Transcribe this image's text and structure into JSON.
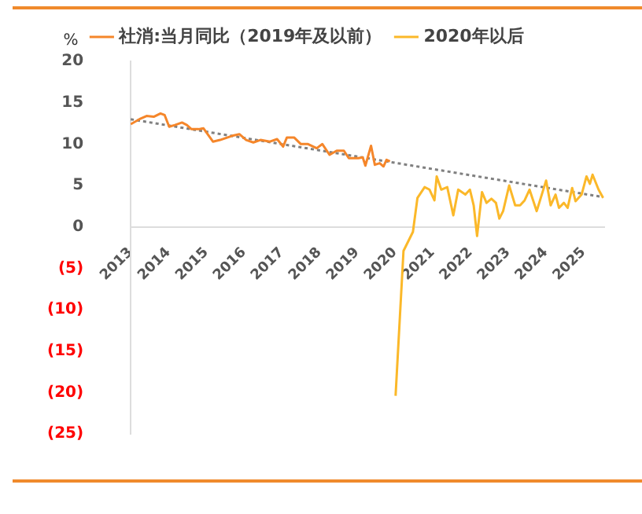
{
  "chart_data": {
    "type": "line",
    "ylabel": "%",
    "legend": "top",
    "grid": false,
    "marker": "none",
    "line_style": "solid",
    "x": [
      2013.0,
      2013.23,
      2013.42,
      2013.61,
      2013.79,
      2013.9,
      2014.02,
      2014.17,
      2014.36,
      2014.49,
      2014.61,
      2014.8,
      2014.93,
      2015.18,
      2015.37,
      2015.69,
      2015.88,
      2016.06,
      2016.25,
      2016.44,
      2016.69,
      2016.88,
      2017.04,
      2017.14,
      2017.33,
      2017.51,
      2017.7,
      2017.93,
      2018.08,
      2018.27,
      2018.46,
      2018.65,
      2018.78,
      2019.03,
      2019.15,
      2019.22,
      2019.37,
      2019.47,
      2019.6,
      2019.7,
      2019.78,
      2019.87
    ],
    "xlim": [
      2013,
      2025.55
    ],
    "xticks": [
      2013,
      2014,
      2015,
      2016,
      2017,
      2018,
      2019,
      2020,
      2021,
      2022,
      2023,
      2024,
      2025
    ],
    "ylim": [
      -25,
      20
    ],
    "yticks": [
      {
        "value": -25,
        "label": "(25)"
      },
      {
        "value": -20,
        "label": "(20)"
      },
      {
        "value": -15,
        "label": "(15)"
      },
      {
        "value": -10,
        "label": "(10)"
      },
      {
        "value": -5,
        "label": "(5)"
      },
      0,
      5,
      10,
      15,
      20
    ],
    "series": [
      {
        "name": "社消:当月同比（2019年及以前）",
        "color": "#f5862a",
        "values": [
          12.4,
          13.0,
          13.4,
          13.3,
          13.7,
          13.5,
          12.1,
          12.3,
          12.6,
          12.3,
          11.8,
          11.8,
          11.9,
          10.3,
          10.5,
          11.0,
          11.2,
          10.5,
          10.2,
          10.5,
          10.3,
          10.6,
          9.7,
          10.8,
          10.8,
          10.0,
          10.0,
          9.5,
          10.0,
          8.7,
          9.2,
          9.2,
          8.3,
          8.3,
          8.4,
          7.4,
          9.8,
          7.5,
          7.7,
          7.3,
          8.1,
          7.9
        ]
      },
      {
        "name": "2020年以后",
        "color": "#fbb829",
        "x": [
          2020.02,
          2020.23,
          2020.48,
          2020.6,
          2020.79,
          2020.92,
          2021.05,
          2021.11,
          2021.23,
          2021.39,
          2021.55,
          2021.68,
          2021.87,
          2021.99,
          2022.09,
          2022.18,
          2022.31,
          2022.43,
          2022.56,
          2022.68,
          2022.77,
          2022.87,
          2023.03,
          2023.19,
          2023.32,
          2023.44,
          2023.57,
          2023.76,
          2024.01,
          2024.13,
          2024.26,
          2024.35,
          2024.48,
          2024.58,
          2024.7,
          2024.79,
          2024.95,
          2025.08,
          2025.17,
          2025.24,
          2025.4,
          2025.52
        ],
        "values": [
          -20.4,
          -2.9,
          -0.6,
          3.5,
          4.8,
          4.5,
          3.2,
          6.1,
          4.5,
          4.8,
          1.4,
          4.5,
          3.9,
          4.5,
          2.6,
          -1.1,
          4.2,
          2.9,
          3.4,
          2.9,
          1.0,
          1.9,
          5.0,
          2.6,
          2.6,
          3.2,
          4.5,
          1.9,
          5.6,
          2.6,
          3.9,
          2.3,
          2.9,
          2.3,
          4.7,
          3.1,
          3.9,
          6.1,
          5.2,
          6.3,
          4.5,
          3.5
        ]
      },
      {
        "color": "#808080",
        "line_style": "dotted",
        "x": [
          2013,
          2025.52
        ],
        "values": [
          13.0,
          3.6
        ]
      }
    ]
  }
}
